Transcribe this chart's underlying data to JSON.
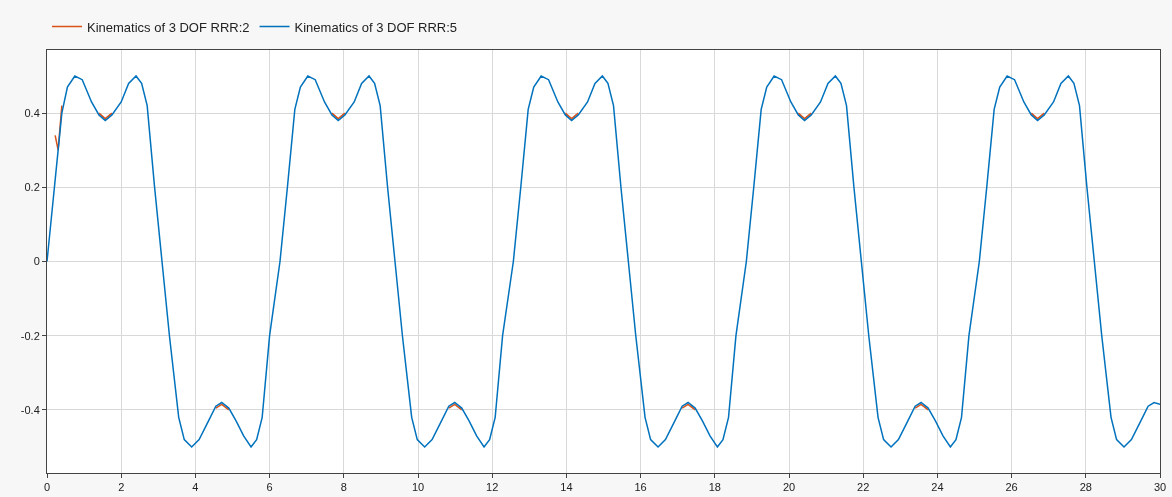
{
  "chart_data": {
    "type": "line",
    "legend": "top left",
    "grid": true,
    "line_style": "solid",
    "marker": "none",
    "xlim": [
      0,
      30
    ],
    "xticks": [
      0,
      2,
      4,
      6,
      8,
      10,
      12,
      14,
      16,
      18,
      20,
      22,
      24,
      26,
      28,
      30
    ],
    "ylim": [
      -0.57,
      0.57
    ],
    "yticks": [
      -0.4,
      -0.2,
      0,
      0.2,
      0.4
    ],
    "series": [
      {
        "name": "Kinematics of 3 DOF RRR:2",
        "color": "#d95319",
        "x": [
          0.22,
          0.3,
          0.4,
          0.55,
          0.75,
          0.95,
          1.2,
          1.4,
          1.57,
          1.75,
          2.0,
          2.2,
          2.4,
          2.55,
          2.7,
          2.9,
          3.1,
          3.3,
          3.55,
          3.7,
          3.9,
          4.1,
          4.35,
          4.55,
          4.71,
          4.9,
          5.1,
          5.3,
          5.5,
          5.65,
          5.8,
          6.0,
          6.28,
          6.48,
          6.68,
          6.83,
          7.03,
          7.23,
          7.48,
          7.68,
          7.85,
          8.03,
          8.28,
          8.48,
          8.68,
          8.83,
          8.98,
          9.18,
          9.38,
          9.58,
          9.83,
          9.98,
          10.18,
          10.38,
          10.63,
          10.83,
          10.99,
          11.18,
          11.38,
          11.58,
          11.78,
          11.93,
          12.08,
          12.28,
          12.57,
          12.77,
          12.97,
          13.12,
          13.32,
          13.52,
          13.77,
          13.97,
          14.14,
          14.32,
          14.57,
          14.77,
          14.97,
          15.12,
          15.27,
          15.47,
          15.67,
          15.87,
          16.12,
          16.27,
          16.47,
          16.67,
          16.92,
          17.12,
          17.28,
          17.47,
          17.67,
          17.87,
          18.07,
          18.22,
          18.37,
          18.57,
          18.85,
          19.05,
          19.25,
          19.4,
          19.6,
          19.8,
          20.05,
          20.25,
          20.42,
          20.6,
          20.85,
          21.05,
          21.25,
          21.4,
          21.55,
          21.75,
          21.95,
          22.15,
          22.4,
          22.55,
          22.75,
          22.95,
          23.2,
          23.4,
          23.56,
          23.75,
          23.95,
          24.15,
          24.35,
          24.5,
          24.65,
          24.85,
          25.13,
          25.33,
          25.53,
          25.68,
          25.88,
          26.08,
          26.33,
          26.53,
          26.7,
          26.88
        ],
        "values": [
          0.34,
          0.3,
          0.42,
          null,
          null,
          null,
          null,
          0.4,
          0.385,
          0.4,
          null,
          null,
          null,
          null,
          null,
          null,
          null,
          null,
          null,
          null,
          null,
          null,
          null,
          -0.395,
          -0.385,
          -0.4,
          null,
          null,
          null,
          null,
          null,
          null,
          null,
          null,
          null,
          null,
          null,
          null,
          null,
          0.4,
          0.385,
          0.4,
          null,
          null,
          null,
          null,
          null,
          null,
          null,
          null,
          null,
          null,
          null,
          null,
          null,
          -0.395,
          -0.385,
          -0.4,
          null,
          null,
          null,
          null,
          null,
          null,
          null,
          null,
          null,
          null,
          null,
          null,
          null,
          0.4,
          0.385,
          0.4,
          null,
          null,
          null,
          null,
          null,
          null,
          null,
          null,
          null,
          null,
          null,
          null,
          null,
          -0.395,
          -0.385,
          -0.4,
          null,
          null,
          null,
          null,
          null,
          null,
          null,
          null,
          null,
          null,
          null,
          null,
          null,
          0.4,
          0.385,
          0.4,
          null,
          null,
          null,
          null,
          null,
          null,
          null,
          null,
          null,
          null,
          null,
          null,
          null,
          -0.395,
          -0.385,
          -0.4,
          null,
          null,
          null,
          null,
          null,
          null,
          null,
          null,
          null,
          null,
          null,
          null,
          null,
          0.4,
          0.385,
          0.4
        ]
      },
      {
        "name": "Kinematics of 3 DOF RRR:5",
        "color": "#0072bd",
        "x": [
          0,
          0.2,
          0.4,
          0.55,
          0.75,
          0.95,
          1.2,
          1.4,
          1.57,
          1.75,
          2.0,
          2.2,
          2.4,
          2.55,
          2.7,
          2.9,
          3.1,
          3.3,
          3.55,
          3.7,
          3.9,
          4.1,
          4.35,
          4.55,
          4.71,
          4.9,
          5.1,
          5.3,
          5.5,
          5.65,
          5.8,
          6.0,
          6.28,
          6.48,
          6.68,
          6.83,
          7.03,
          7.23,
          7.48,
          7.68,
          7.85,
          8.03,
          8.28,
          8.48,
          8.68,
          8.83,
          8.98,
          9.18,
          9.38,
          9.58,
          9.83,
          9.98,
          10.18,
          10.38,
          10.63,
          10.83,
          10.99,
          11.18,
          11.38,
          11.58,
          11.78,
          11.93,
          12.08,
          12.28,
          12.57,
          12.77,
          12.97,
          13.12,
          13.32,
          13.52,
          13.77,
          13.97,
          14.14,
          14.32,
          14.57,
          14.77,
          14.97,
          15.12,
          15.27,
          15.47,
          15.67,
          15.87,
          16.12,
          16.27,
          16.47,
          16.67,
          16.92,
          17.12,
          17.28,
          17.47,
          17.67,
          17.87,
          18.07,
          18.22,
          18.37,
          18.57,
          18.85,
          19.05,
          19.25,
          19.4,
          19.6,
          19.8,
          20.05,
          20.25,
          20.42,
          20.6,
          20.85,
          21.05,
          21.25,
          21.4,
          21.55,
          21.75,
          21.95,
          22.15,
          22.4,
          22.55,
          22.75,
          22.95,
          23.2,
          23.4,
          23.56,
          23.75,
          23.95,
          24.15,
          24.35,
          24.5,
          24.65,
          24.85,
          25.13,
          25.33,
          25.53,
          25.68,
          25.88,
          26.08,
          26.33,
          26.53,
          26.7,
          26.88,
          27.13,
          27.33,
          27.53,
          27.68,
          27.83,
          28.03,
          28.23,
          28.43,
          28.68,
          28.83,
          29.03,
          29.23,
          29.48,
          29.68,
          29.84,
          30
        ],
        "values": [
          0,
          0.2,
          0.4,
          0.47,
          0.5,
          0.49,
          0.43,
          0.395,
          0.38,
          0.395,
          0.43,
          0.48,
          0.5,
          0.48,
          0.42,
          0.2,
          0,
          -0.2,
          -0.42,
          -0.48,
          -0.5,
          -0.48,
          -0.43,
          -0.39,
          -0.38,
          -0.395,
          -0.43,
          -0.47,
          -0.5,
          -0.48,
          -0.42,
          -0.2,
          0,
          0.2,
          0.41,
          0.47,
          0.5,
          0.49,
          0.43,
          0.395,
          0.38,
          0.395,
          0.43,
          0.48,
          0.5,
          0.48,
          0.42,
          0.2,
          0,
          -0.2,
          -0.42,
          -0.48,
          -0.5,
          -0.48,
          -0.43,
          -0.39,
          -0.38,
          -0.395,
          -0.43,
          -0.47,
          -0.5,
          -0.48,
          -0.42,
          -0.2,
          0,
          0.2,
          0.41,
          0.47,
          0.5,
          0.49,
          0.43,
          0.395,
          0.38,
          0.395,
          0.43,
          0.48,
          0.5,
          0.48,
          0.42,
          0.2,
          0,
          -0.2,
          -0.42,
          -0.48,
          -0.5,
          -0.48,
          -0.43,
          -0.39,
          -0.38,
          -0.395,
          -0.43,
          -0.47,
          -0.5,
          -0.48,
          -0.42,
          -0.2,
          0,
          0.2,
          0.41,
          0.47,
          0.5,
          0.49,
          0.43,
          0.395,
          0.38,
          0.395,
          0.43,
          0.48,
          0.5,
          0.48,
          0.42,
          0.2,
          0,
          -0.2,
          -0.42,
          -0.48,
          -0.5,
          -0.48,
          -0.43,
          -0.39,
          -0.38,
          -0.395,
          -0.43,
          -0.47,
          -0.5,
          -0.48,
          -0.42,
          -0.2,
          0,
          0.2,
          0.41,
          0.47,
          0.5,
          0.49,
          0.43,
          0.395,
          0.38,
          0.395,
          0.43,
          0.48,
          0.5,
          0.48,
          0.42,
          0.2,
          0,
          -0.2,
          -0.42,
          -0.48,
          -0.5,
          -0.48,
          -0.43,
          -0.39,
          -0.38,
          -0.385
        ]
      }
    ]
  }
}
